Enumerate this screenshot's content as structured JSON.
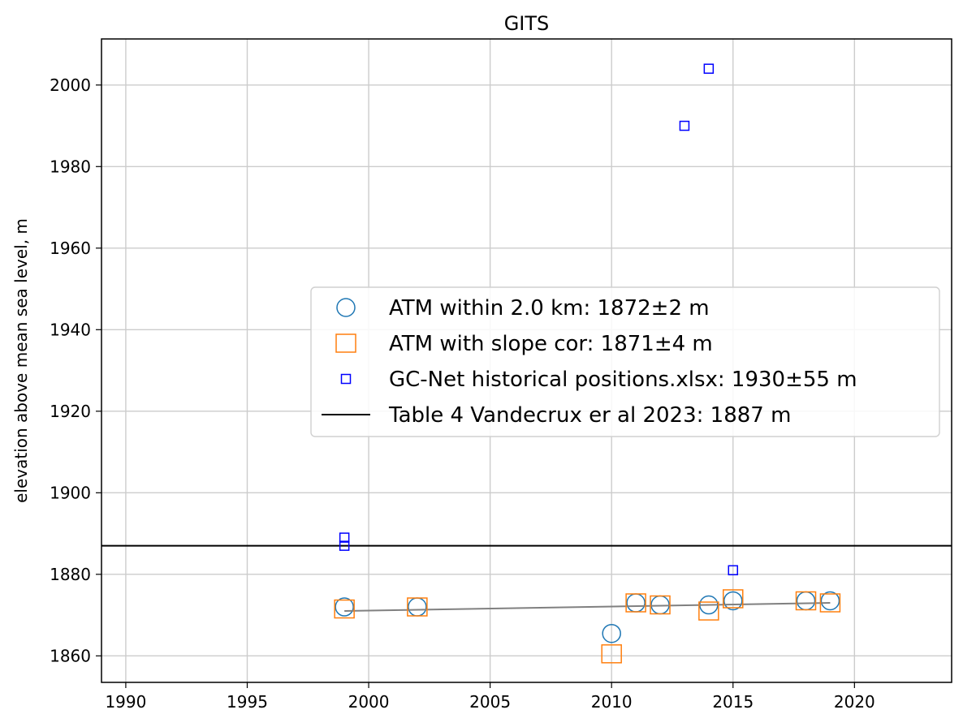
{
  "chart_data": {
    "type": "scatter",
    "title": "GITS",
    "xlabel": "",
    "ylabel": "elevation above mean sea level, m",
    "xlim": [
      1989,
      2024
    ],
    "ylim": [
      1853.5,
      2011.3
    ],
    "grid": true,
    "legend_position": "center-right",
    "x_ticks": [
      1990,
      1995,
      2000,
      2005,
      2010,
      2015,
      2020
    ],
    "y_ticks": [
      1860,
      1880,
      1900,
      1920,
      1940,
      1960,
      1980,
      2000
    ],
    "series": [
      {
        "name": "ATM within 2.0 km: 1872±2 m",
        "marker": "circle-open",
        "color": "#1f77b4",
        "points": [
          [
            1999,
            1872
          ],
          [
            2002,
            1872
          ],
          [
            2010,
            1865.5
          ],
          [
            2011,
            1873
          ],
          [
            2012,
            1872.5
          ],
          [
            2014,
            1872.5
          ],
          [
            2015,
            1873.5
          ],
          [
            2018,
            1873.5
          ],
          [
            2019,
            1873.5
          ]
        ]
      },
      {
        "name": "ATM with slope cor: 1871±4 m",
        "marker": "square-open",
        "color": "#ff7f0e",
        "points": [
          [
            1999,
            1871.5
          ],
          [
            2002,
            1872
          ],
          [
            2010,
            1860.5
          ],
          [
            2011,
            1873
          ],
          [
            2012,
            1872.5
          ],
          [
            2014,
            1871
          ],
          [
            2015,
            1874
          ],
          [
            2018,
            1873.5
          ],
          [
            2019,
            1873
          ]
        ]
      },
      {
        "name": "GC-Net historical positions.xlsx: 1930±55 m",
        "marker": "square-open-small",
        "color": "#0000ff",
        "points": [
          [
            1999,
            1889
          ],
          [
            1999,
            1887
          ],
          [
            2013,
            1990
          ],
          [
            2014,
            2004
          ],
          [
            2015,
            1881
          ]
        ]
      },
      {
        "name": "Table 4 Vandecrux er al 2023: 1887 m",
        "marker": "hline",
        "color": "#000000",
        "value": 1887
      },
      {
        "marker": "trend-line",
        "color": "#808080",
        "points": [
          [
            1999,
            1871
          ],
          [
            2019,
            1873
          ]
        ]
      }
    ]
  }
}
